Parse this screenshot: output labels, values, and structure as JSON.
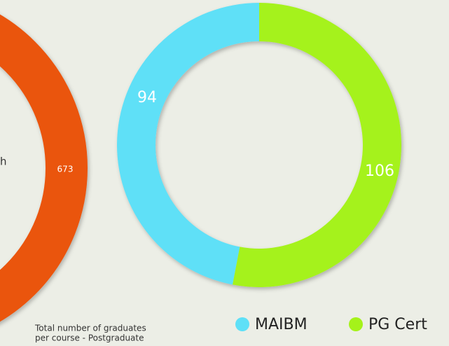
{
  "chart_data": [
    {
      "type": "donut",
      "values": [
        673
      ],
      "color": "#ea5410",
      "annotation": "h"
    },
    {
      "type": "donut",
      "categories": [
        "MAIBM",
        "PG Cert"
      ],
      "values": [
        94,
        106
      ],
      "colors": [
        "#5ee0f7",
        "#a5f21a"
      ],
      "caption": [
        "Total number of graduates",
        "per course - Postgraduate"
      ]
    }
  ]
}
